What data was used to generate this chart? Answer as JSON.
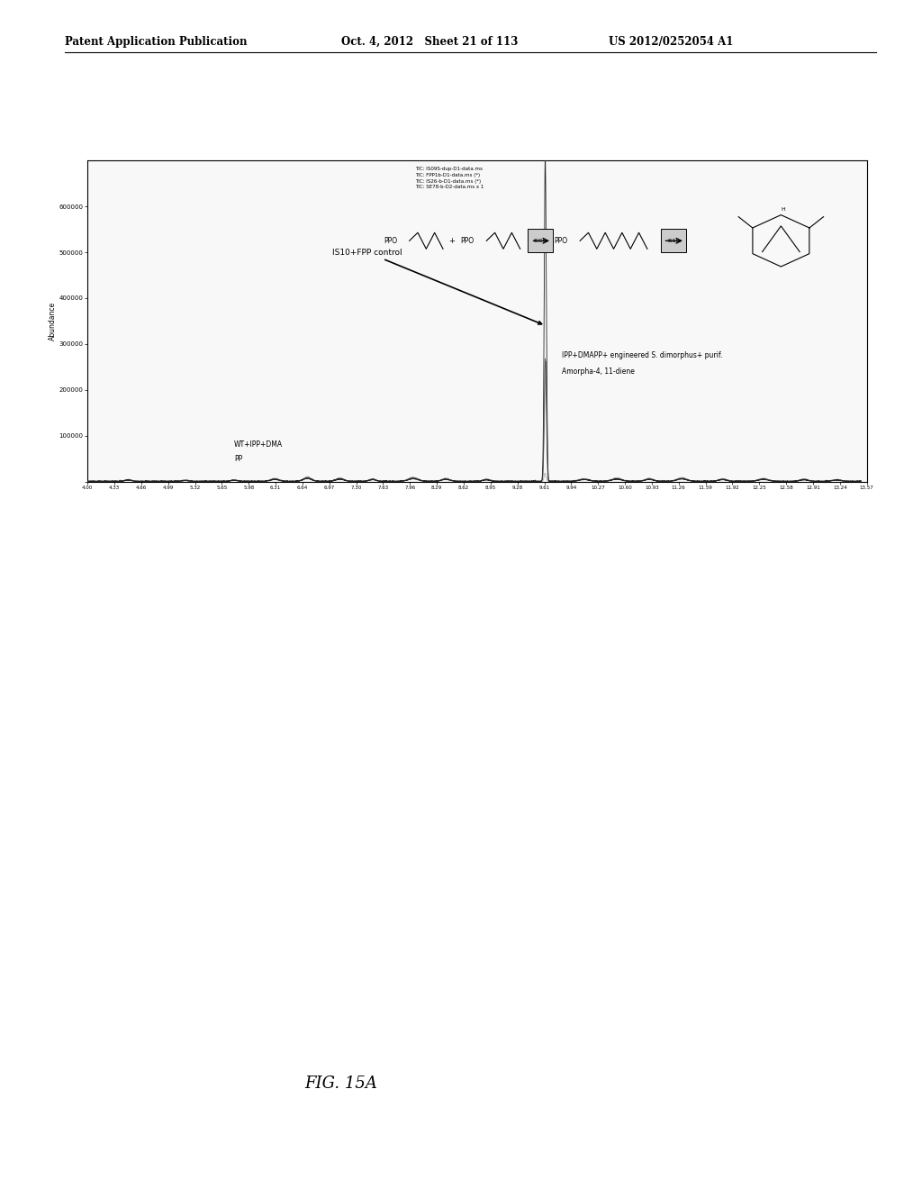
{
  "header_left": "Patent Application Publication",
  "header_mid": "Oct. 4, 2012   Sheet 21 of 113",
  "header_right": "US 2012/0252054 A1",
  "figure_label": "FIG. 15A",
  "plot_title_lines": [
    "TIC: IS09S-dup-D1-data.ms",
    "TIC: FPP1b-D1-data.ms (*)",
    "TIC: IS26-b-D1-data.ms (*)",
    "TIC: SE78-b-D2-data.ms x 1"
  ],
  "ylabel": "Abundance",
  "ylim_max": 700000,
  "yticks": [
    0,
    100000,
    200000,
    300000,
    400000,
    500000,
    600000
  ],
  "ytick_labels": [
    "",
    "100000",
    "200000",
    "300000",
    "400000",
    "500000",
    "600000"
  ],
  "xlim_min": 4.0,
  "xlim_max": 13.5,
  "annotation_IS10_FPP": "IS10+FPP control",
  "annotation_WT_line1": "WT+IPP+DMA",
  "annotation_WT_line2": "PP",
  "annotation_IPP_line1": "IPP+DMAPP+ engineered S. dimorphus+ purif.",
  "annotation_IPP_line2": "Amorpha-4, 11-diene",
  "bg_color": "#ffffff",
  "plot_bg": "#f8f8f8",
  "border_color": "#000000"
}
